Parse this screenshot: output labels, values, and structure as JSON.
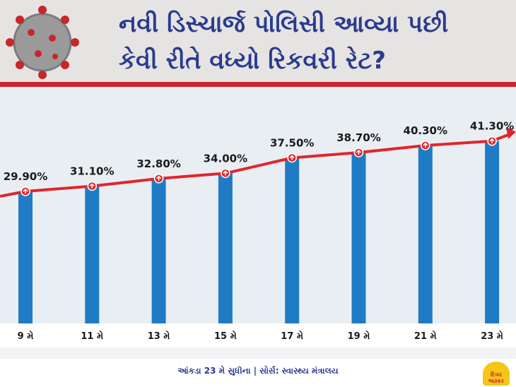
{
  "header": {
    "title_line1": "નવી ડિસ્ચાર્જ પોલિસી આવ્યા પછી",
    "title_line2": "કેવી રીતે વધ્યો રિકવરી રેટ?"
  },
  "chart_data": {
    "type": "bar",
    "categories": [
      "9 મે",
      "11 મે",
      "13 મે",
      "15 મે",
      "17 મે",
      "19 મે",
      "21 મે",
      "23 મે"
    ],
    "values": [
      29.9,
      31.1,
      32.8,
      34.0,
      37.5,
      38.7,
      40.3,
      41.3
    ],
    "value_labels": [
      "29.90%",
      "31.10%",
      "32.80%",
      "34.00%",
      "37.50%",
      "38.70%",
      "40.30%",
      "41.30%"
    ],
    "title": "નવી ડિસ્ચાર્જ પોલિસી આવ્યા પછી કેવી રીતે વધ્યો રિકવરી રેટ?",
    "xlabel": "",
    "ylabel": "",
    "ylim": [
      0,
      45
    ],
    "grid": false,
    "overlay": "trend-line-with-arrow",
    "colors": {
      "bar": "#1f7cc4",
      "trend": "#e0262c"
    }
  },
  "footer": {
    "note": "આંકડા 23 મે સુધીના | સોર્સ: સ્વાસ્થ્ય મંત્રાલય",
    "logo_text": "દિવ્ય ભાસ્કર"
  }
}
